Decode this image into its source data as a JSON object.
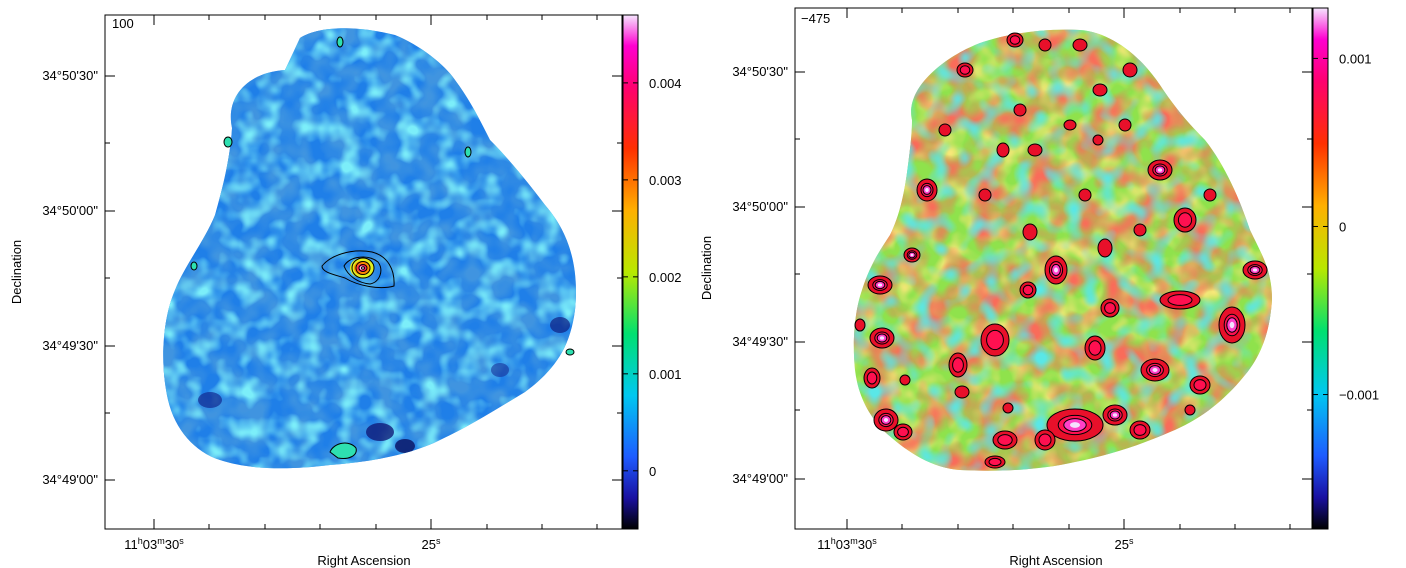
{
  "chart_data": [
    {
      "type": "heatmap",
      "corner_label": "100",
      "xlabel": "Right Ascension",
      "ylabel": "Declination",
      "x_ticks": [
        {
          "h": "11",
          "m": "03",
          "s": "30"
        },
        {
          "s": "25"
        }
      ],
      "y_ticks": [
        "34°50'30\"",
        "34°50'00\"",
        "34°49'30\"",
        "34°49'00\""
      ],
      "colorbar": {
        "ticks": [
          "0.004",
          "0.003",
          "0.002",
          "0.001",
          "0"
        ],
        "tick_values": [
          0.004,
          0.003,
          0.002,
          0.001,
          0
        ],
        "range": [
          -0.0006,
          0.0047
        ],
        "colormap": [
          "#000000",
          "#1a10a0",
          "#1e6bff",
          "#00d8f0",
          "#00e060",
          "#cfe800",
          "#ff9a00",
          "#ff0030",
          "#ff00b0",
          "#f6d8ff"
        ]
      },
      "grid": false,
      "field_color": "#1f8cf0",
      "contours": true,
      "source_peak": "central compact source"
    },
    {
      "type": "heatmap",
      "corner_label": "−475",
      "xlabel": "Right Ascension",
      "ylabel": "Declination",
      "x_ticks": [
        {
          "h": "11",
          "m": "03",
          "s": "30"
        },
        {
          "s": "25"
        }
      ],
      "y_ticks": [
        "34°50'30\"",
        "34°50'00\"",
        "34°49'30\"",
        "34°49'00\""
      ],
      "colorbar": {
        "ticks": [
          "0.001",
          "0",
          "−0.001"
        ],
        "tick_values": [
          0.001,
          0,
          -0.001
        ],
        "range": [
          -0.0018,
          0.0013
        ],
        "colormap": [
          "#000000",
          "#1a10a0",
          "#1e6bff",
          "#00d8f0",
          "#00e060",
          "#cfe800",
          "#ff9a00",
          "#ff0030",
          "#ff00b0",
          "#f6d8ff"
        ]
      },
      "grid": false,
      "field_color": "#9be34a",
      "contours": true
    }
  ]
}
